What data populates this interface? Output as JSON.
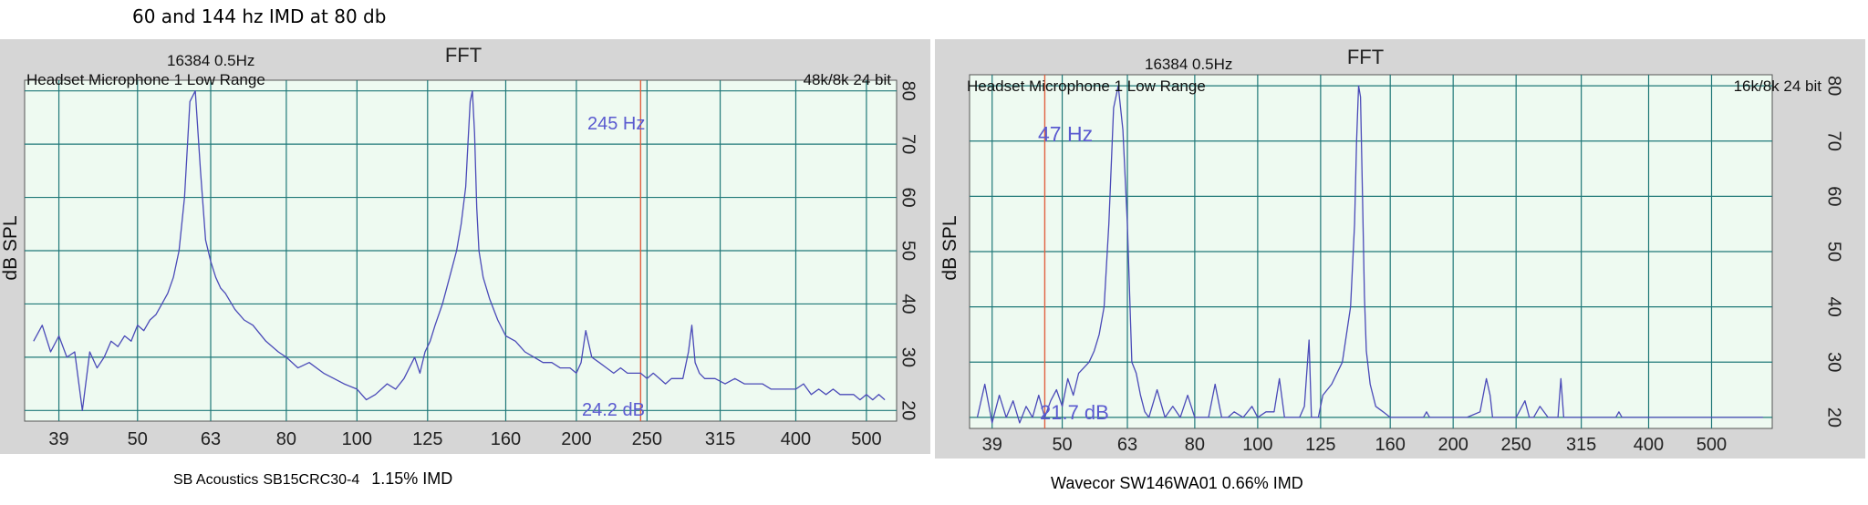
{
  "page": {
    "title": "60 and 144 hz IMD at 80 db",
    "caption_left_brand": "SB Acoustics",
    "caption_left_model": "SB15CRC30-4",
    "caption_left_imd": "1.15% IMD",
    "caption_right": "Wavecor SW146WA01 0.66% IMD"
  },
  "colors": {
    "frame": "#d6d6d6",
    "plot_bg": "#eefaf1",
    "grid": "#1f7878",
    "trace": "#4a4ab8",
    "marker": "#e06040",
    "annotation": "#5a5ad0"
  },
  "chart_data": [
    {
      "type": "line",
      "title": "FFT",
      "header_left": "16384  0.5Hz",
      "subtitle": "Headset Microphone 1 Low Range",
      "header_right": "48k/8k 24 bit",
      "ylabel": "dB SPL",
      "xscale": "log",
      "xlim": [
        35,
        550
      ],
      "ylim": [
        18,
        82
      ],
      "x_ticks": [
        39,
        50,
        63,
        80,
        100,
        125,
        160,
        200,
        250,
        315,
        400,
        500
      ],
      "y_ticks": [
        20,
        30,
        40,
        50,
        60,
        70,
        80
      ],
      "marker_freq": 245,
      "marker_freq_label": "245 Hz",
      "marker_level_label": "24.2 dB",
      "series": [
        {
          "x": [
            36,
            37,
            38,
            39,
            40,
            41,
            42,
            43,
            44,
            45,
            46,
            47,
            48,
            49,
            50,
            51,
            52,
            53,
            54,
            55,
            56,
            57,
            58,
            59,
            60,
            61,
            62,
            63,
            64,
            65,
            66,
            68,
            70,
            72,
            75,
            78,
            80,
            83,
            86,
            90,
            93,
            96,
            100,
            103,
            106,
            110,
            113,
            116,
            120,
            122,
            124,
            126,
            128,
            131,
            134,
            137,
            139,
            141,
            142,
            143,
            144,
            145,
            146,
            147,
            149,
            152,
            156,
            160,
            165,
            170,
            175,
            180,
            185,
            190,
            196,
            200,
            203,
            206,
            210,
            215,
            220,
            225,
            230,
            235,
            240,
            245,
            250,
            255,
            260,
            265,
            270,
            280,
            285,
            288,
            291,
            295,
            300,
            310,
            320,
            330,
            340,
            350,
            360,
            370,
            380,
            390,
            400,
            410,
            420,
            430,
            440,
            450,
            460,
            470,
            480,
            490,
            500,
            510,
            520,
            530
          ],
          "y": [
            33,
            36,
            31,
            34,
            30,
            31,
            20,
            31,
            28,
            30,
            33,
            32,
            34,
            33,
            36,
            35,
            37,
            38,
            40,
            42,
            45,
            50,
            60,
            78,
            80,
            65,
            52,
            48,
            45,
            43,
            42,
            39,
            37,
            36,
            33,
            31,
            30,
            28,
            29,
            27,
            26,
            25,
            24,
            22,
            23,
            25,
            24,
            26,
            30,
            27,
            31,
            33,
            36,
            40,
            45,
            50,
            55,
            62,
            70,
            78,
            80,
            72,
            58,
            50,
            45,
            41,
            37,
            34,
            33,
            31,
            30,
            29,
            29,
            28,
            28,
            27,
            29,
            35,
            30,
            29,
            28,
            27,
            28,
            27,
            27,
            27,
            26,
            27,
            26,
            25,
            26,
            26,
            31,
            36,
            29,
            27,
            26,
            26,
            25,
            26,
            25,
            25,
            25,
            24,
            24,
            24,
            24,
            25,
            23,
            24,
            23,
            24,
            23,
            23,
            23,
            22,
            23,
            22,
            23,
            22
          ]
        }
      ]
    },
    {
      "type": "line",
      "title": "FFT",
      "header_left": "16384  0.5Hz",
      "subtitle": "Headset Microphone 1 Low Range",
      "header_right": "16k/8k 24 bit",
      "ylabel": "dB SPL",
      "xscale": "log",
      "xlim": [
        36,
        620
      ],
      "ylim": [
        18,
        82
      ],
      "x_ticks": [
        39,
        50,
        63,
        80,
        100,
        125,
        160,
        200,
        250,
        315,
        400,
        500
      ],
      "y_ticks": [
        20,
        30,
        40,
        50,
        60,
        70,
        80
      ],
      "marker_freq": 47,
      "marker_freq_label": "47 Hz",
      "marker_level_label": "21.7 dB",
      "series": [
        {
          "x": [
            37,
            38,
            39,
            40,
            41,
            42,
            43,
            44,
            45,
            46,
            47,
            48,
            49,
            50,
            51,
            52,
            53,
            54,
            55,
            56,
            57,
            58,
            59,
            60,
            61,
            62,
            63,
            64,
            65,
            66,
            67,
            68,
            70,
            72,
            74,
            76,
            78,
            80,
            82,
            84,
            86,
            88,
            90,
            92,
            95,
            98,
            100,
            103,
            106,
            108,
            110,
            112,
            114,
            116,
            118,
            120,
            121,
            122,
            123,
            124,
            126,
            130,
            135,
            139,
            141,
            142,
            143,
            144,
            145,
            146,
            147,
            149,
            152,
            156,
            160,
            165,
            175,
            180,
            182,
            184,
            190,
            200,
            210,
            220,
            225,
            228,
            230,
            235,
            240,
            250,
            258,
            262,
            266,
            272,
            280,
            290,
            293,
            296,
            300,
            320,
            340,
            356,
            360,
            364,
            380,
            400,
            420,
            430,
            435,
            440,
            460,
            500,
            550,
            600
          ],
          "y": [
            20,
            26,
            19,
            24,
            20,
            23,
            19,
            22,
            20,
            24,
            20,
            23,
            25,
            22,
            27,
            24,
            28,
            29,
            30,
            32,
            35,
            40,
            55,
            76,
            80,
            72,
            55,
            30,
            28,
            24,
            21,
            20,
            25,
            20,
            22,
            20,
            24,
            20,
            20,
            20,
            26,
            20,
            20,
            21,
            20,
            22,
            20,
            21,
            21,
            27,
            20,
            20,
            20,
            20,
            22,
            34,
            20,
            20,
            20,
            20,
            24,
            26,
            30,
            40,
            55,
            70,
            80,
            78,
            60,
            42,
            32,
            26,
            22,
            21,
            20,
            20,
            20,
            20,
            21,
            20,
            20,
            20,
            20,
            21,
            27,
            24,
            20,
            20,
            20,
            20,
            23,
            20,
            20,
            22,
            20,
            20,
            27,
            20,
            20,
            20,
            20,
            20,
            21,
            20,
            20,
            20,
            20,
            20,
            20,
            20,
            20,
            20,
            20,
            20
          ]
        }
      ]
    }
  ]
}
